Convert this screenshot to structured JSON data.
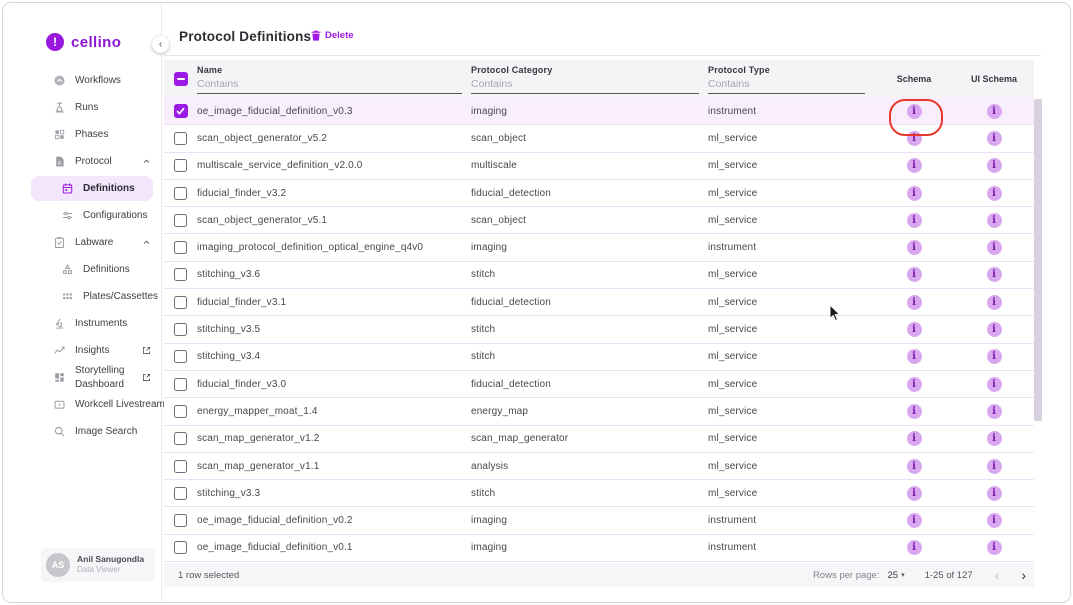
{
  "brand": {
    "name": "cellino",
    "logo_glyph": "!"
  },
  "sidebar": {
    "collapse_glyph": "‹",
    "items": [
      {
        "label": "Workflows",
        "icon": "workflows-icon"
      },
      {
        "label": "Runs",
        "icon": "runs-icon"
      },
      {
        "label": "Phases",
        "icon": "phases-icon"
      },
      {
        "label": "Protocol",
        "icon": "protocol-icon",
        "expanded": true
      },
      {
        "label": "Definitions",
        "icon": "calendar-icon",
        "indent": true,
        "active": true
      },
      {
        "label": "Configurations",
        "icon": "tune-icon",
        "indent": true
      },
      {
        "label": "Labware",
        "icon": "labware-icon",
        "expanded": true
      },
      {
        "label": "Definitions",
        "icon": "shapes-icon",
        "indent": true
      },
      {
        "label": "Plates/Cassettes",
        "icon": "plates-icon",
        "indent": true
      },
      {
        "label": "Instruments",
        "icon": "microscope-icon"
      },
      {
        "label": "Insights",
        "icon": "insights-icon",
        "external": true
      },
      {
        "label": "Storytelling Dashboard",
        "icon": "dashboard-icon",
        "external": true
      },
      {
        "label": "Workcell Livestream",
        "icon": "livestream-icon"
      },
      {
        "label": "Image Search",
        "icon": "image-search-icon"
      }
    ],
    "user": {
      "initials": "AS",
      "name": "Anil Sanugondla",
      "role": "Data Viewer"
    }
  },
  "header": {
    "title": "Protocol Definitions",
    "delete_label": "Delete"
  },
  "table": {
    "filter_placeholder": "Contains",
    "info_glyph": "i",
    "columns": [
      {
        "label": "Name"
      },
      {
        "label": "Protocol Category"
      },
      {
        "label": "Protocol Type"
      },
      {
        "label": "Schema"
      },
      {
        "label": "UI Schema"
      }
    ],
    "rows": [
      {
        "name": "oe_image_fiducial_definition_v0.3",
        "category": "imaging",
        "type": "instrument",
        "selected": true
      },
      {
        "name": "scan_object_generator_v5.2",
        "category": "scan_object",
        "type": "ml_service"
      },
      {
        "name": "multiscale_service_definition_v2.0.0",
        "category": "multiscale",
        "type": "ml_service"
      },
      {
        "name": "fiducial_finder_v3.2",
        "category": "fiducial_detection",
        "type": "ml_service"
      },
      {
        "name": "scan_object_generator_v5.1",
        "category": "scan_object",
        "type": "ml_service"
      },
      {
        "name": "imaging_protocol_definition_optical_engine_q4v0",
        "category": "imaging",
        "type": "instrument"
      },
      {
        "name": "stitching_v3.6",
        "category": "stitch",
        "type": "ml_service"
      },
      {
        "name": "fiducial_finder_v3.1",
        "category": "fiducial_detection",
        "type": "ml_service"
      },
      {
        "name": "stitching_v3.5",
        "category": "stitch",
        "type": "ml_service"
      },
      {
        "name": "stitching_v3.4",
        "category": "stitch",
        "type": "ml_service"
      },
      {
        "name": "fiducial_finder_v3.0",
        "category": "fiducial_detection",
        "type": "ml_service"
      },
      {
        "name": "energy_mapper_moat_1.4",
        "category": "energy_map",
        "type": "ml_service"
      },
      {
        "name": "scan_map_generator_v1.2",
        "category": "scan_map_generator",
        "type": "ml_service"
      },
      {
        "name": "scan_map_generator_v1.1",
        "category": "analysis",
        "type": "ml_service"
      },
      {
        "name": "stitching_v3.3",
        "category": "stitch",
        "type": "ml_service"
      },
      {
        "name": "oe_image_fiducial_definition_v0.2",
        "category": "imaging",
        "type": "instrument"
      },
      {
        "name": "oe_image_fiducial_definition_v0.1",
        "category": "imaging",
        "type": "instrument"
      }
    ]
  },
  "annotation": {
    "row_index": 0,
    "column": "schema",
    "color": "#e5372b"
  },
  "footer": {
    "selected_text": "1 row selected",
    "rows_per_page_label": "Rows per page:",
    "rows_per_page_value": "25",
    "caret_glyph": "▾",
    "range_text": "1-25 of 127",
    "prev_glyph": "‹",
    "next_glyph": "›"
  },
  "colors": {
    "brand_purple": "#9a17dd",
    "selected_row_bg": "#f8eefc",
    "info_button_bg": "#d9a7ef",
    "annotation_red": "#e5372b"
  }
}
